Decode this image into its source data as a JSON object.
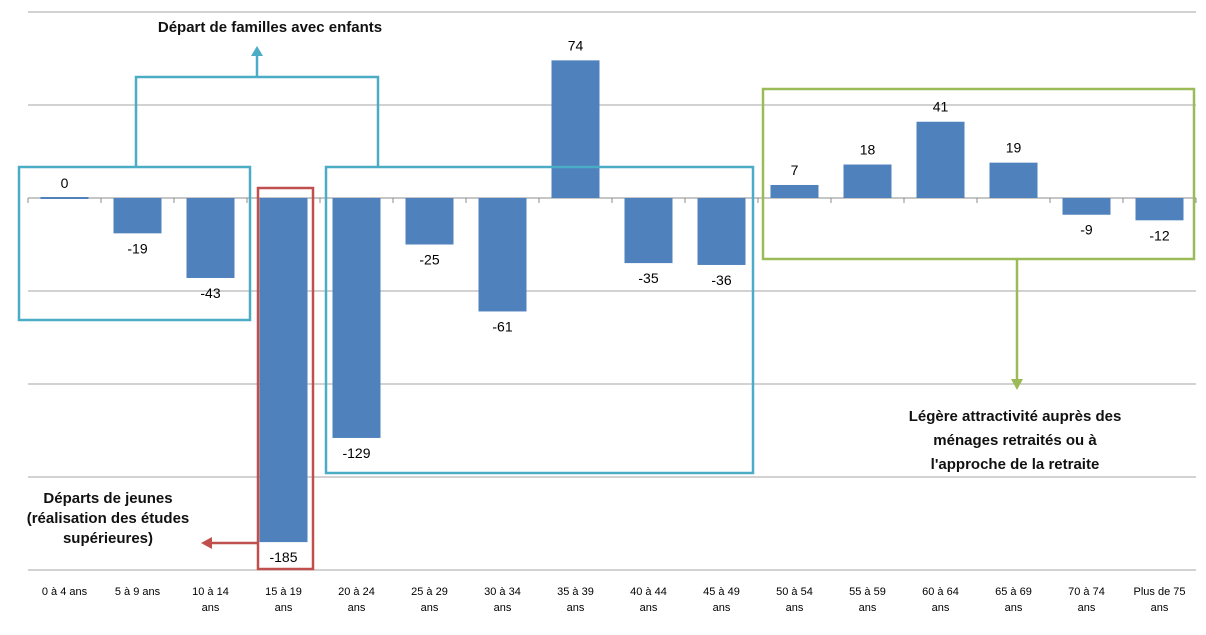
{
  "chart_data": {
    "type": "bar",
    "categories": [
      "0 à 4 ans",
      "5 à 9 ans",
      "10 à 14 ans",
      "15 à 19 ans",
      "20 à 24 ans",
      "25 à 29 ans",
      "30 à 34 ans",
      "35 à 39 ans",
      "40 à 44 ans",
      "45 à 49 ans",
      "50 à 54 ans",
      "55 à 59 ans",
      "60 à 64 ans",
      "65 à 69 ans",
      "70 à 74 ans",
      "Plus de 75 ans"
    ],
    "values": [
      0,
      -19,
      -43,
      -185,
      -129,
      -25,
      -61,
      74,
      -35,
      -36,
      7,
      18,
      41,
      19,
      -9,
      -12
    ],
    "ylim": [
      -200,
      100
    ],
    "grid": true,
    "bar_color": "#4f81bd",
    "annotations": {
      "familles": {
        "lines": [
          "Départ de familles avec enfants"
        ],
        "color": "#4bacc6"
      },
      "jeunes": {
        "lines": [
          "Départs de jeunes",
          "(réalisation des études",
          "supérieures)"
        ],
        "color": "#c0504d"
      },
      "retraite": {
        "lines": [
          "Légère attractivité auprès des",
          "ménages retraités ou à",
          "l'approche de la retraite"
        ],
        "color": "#9bbb59"
      }
    }
  }
}
